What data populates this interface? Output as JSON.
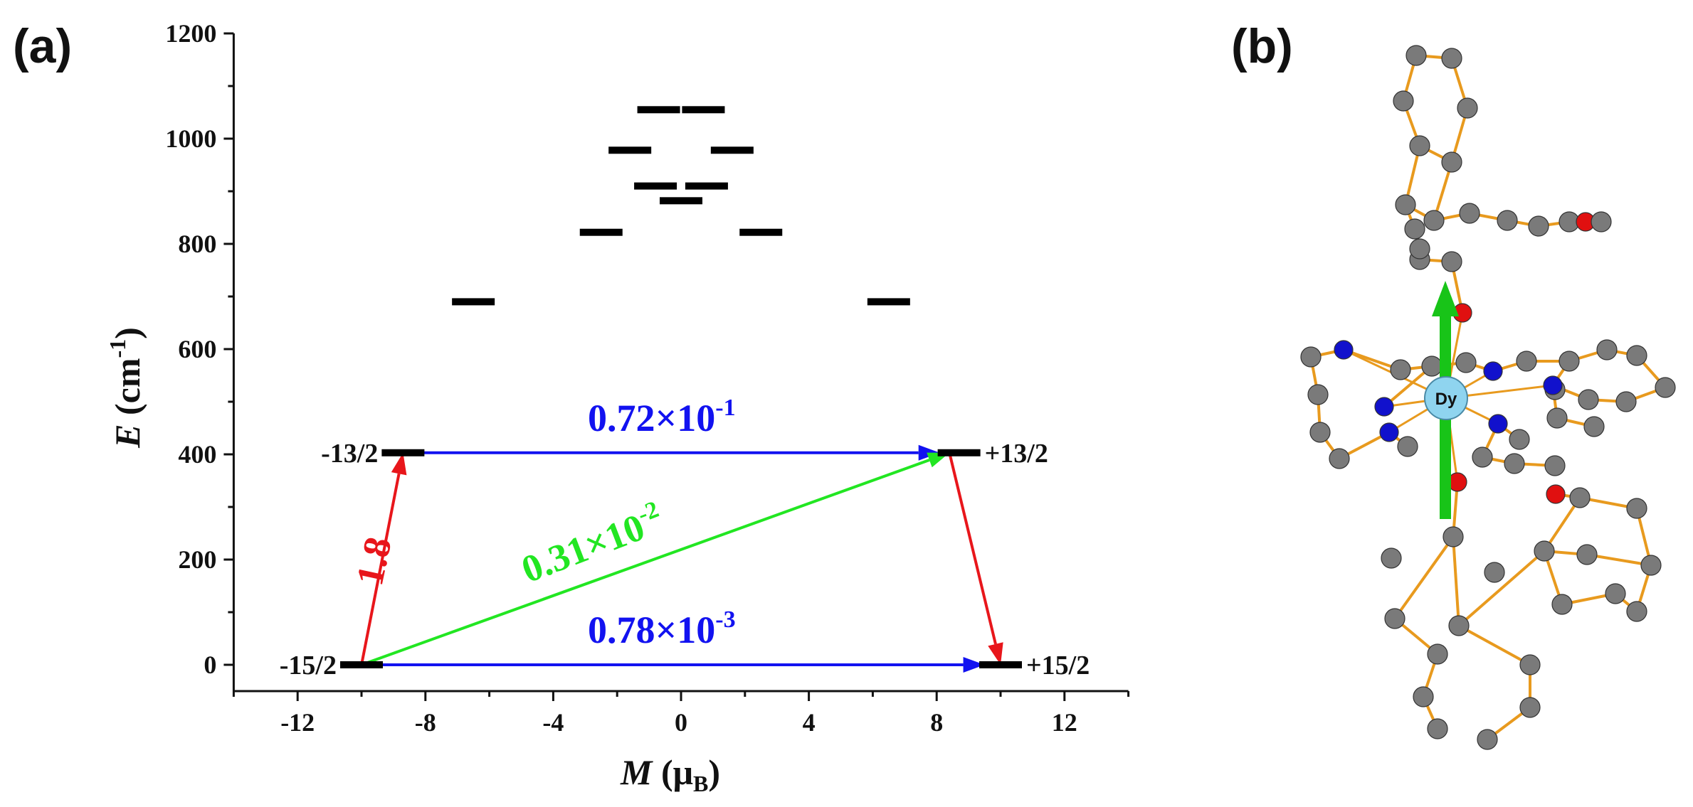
{
  "panels": {
    "a": "(a)",
    "b": "(b)"
  },
  "chart_data": {
    "type": "scatter",
    "xlabel": {
      "italic": "M",
      "main": "μ",
      "sub": "B"
    },
    "ylabel": {
      "italic": "E",
      "main": "cm",
      "sup": "-1"
    },
    "xlim": [
      -14,
      14
    ],
    "ylim": [
      -50,
      1200
    ],
    "xticks": [
      -12,
      -8,
      -4,
      0,
      4,
      8,
      12
    ],
    "yticks": [
      0,
      200,
      400,
      600,
      800,
      1000,
      1200
    ],
    "levels": [
      {
        "m": -10.0,
        "e": 0
      },
      {
        "m": 10.0,
        "e": 0
      },
      {
        "m": -8.7,
        "e": 403
      },
      {
        "m": 8.7,
        "e": 403
      },
      {
        "m": -6.5,
        "e": 690
      },
      {
        "m": 6.5,
        "e": 690
      },
      {
        "m": -2.5,
        "e": 822
      },
      {
        "m": 2.5,
        "e": 822
      },
      {
        "m": 0.0,
        "e": 882
      },
      {
        "m": -0.8,
        "e": 910
      },
      {
        "m": 0.8,
        "e": 910
      },
      {
        "m": -1.6,
        "e": 978
      },
      {
        "m": 1.6,
        "e": 978
      },
      {
        "m": -0.7,
        "e": 1055
      },
      {
        "m": 0.7,
        "e": 1055
      }
    ],
    "state_labels": [
      {
        "text": "-15/2",
        "m": -10.0,
        "e": 0,
        "side": "left"
      },
      {
        "text": "+15/2",
        "m": 10.0,
        "e": 0,
        "side": "right"
      },
      {
        "text": "-13/2",
        "m": -8.7,
        "e": 403,
        "side": "left"
      },
      {
        "text": "+13/2",
        "m": 8.7,
        "e": 403,
        "side": "right"
      }
    ],
    "transitions": [
      {
        "from": [
          -10.0,
          0
        ],
        "to": [
          -8.7,
          403
        ],
        "color": "#e8161b"
      },
      {
        "from": [
          -8.7,
          403
        ],
        "to": [
          8.1,
          403
        ],
        "color": "#1212f0"
      },
      {
        "from": [
          -10.0,
          0
        ],
        "to": [
          8.4,
          403
        ],
        "color": "#22e622"
      },
      {
        "from": [
          8.4,
          403
        ],
        "to": [
          10.0,
          0
        ],
        "color": "#e8161b"
      },
      {
        "from": [
          -10.0,
          0
        ],
        "to": [
          9.5,
          0
        ],
        "color": "#1212f0"
      }
    ],
    "rate_labels": {
      "blue_top": {
        "main": "0.72×10",
        "sup": "-1",
        "color": "#1212f0"
      },
      "green": {
        "main": "0.31×10",
        "sup": "-2",
        "color": "#22e622"
      },
      "blue_bottom": {
        "main": "0.78×10",
        "sup": "-3",
        "color": "#1212f0"
      },
      "red": {
        "main": "1.8",
        "color": "#e8161b"
      }
    }
  },
  "structure": {
    "metal_label": "Dy",
    "colors": {
      "carbon": "#7a7a7a",
      "nitrogen": "#1111cc",
      "oxygen": "#e01010",
      "dy": "#8fd4ef",
      "bond": "#e89a1e",
      "axis_arrow": "#18c418"
    }
  }
}
